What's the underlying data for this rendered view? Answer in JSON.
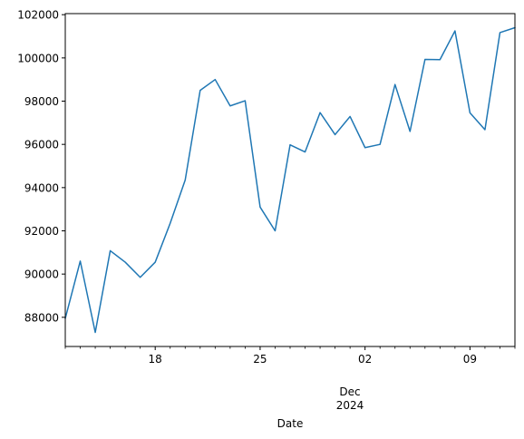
{
  "chart_data": {
    "type": "line",
    "xlabel": "Date",
    "x": [
      "2024-11-12",
      "2024-11-13",
      "2024-11-14",
      "2024-11-15",
      "2024-11-16",
      "2024-11-17",
      "2024-11-18",
      "2024-11-19",
      "2024-11-20",
      "2024-11-21",
      "2024-11-22",
      "2024-11-23",
      "2024-11-24",
      "2024-11-25",
      "2024-11-26",
      "2024-11-27",
      "2024-11-28",
      "2024-11-29",
      "2024-11-30",
      "2024-12-01",
      "2024-12-02",
      "2024-12-03",
      "2024-12-04",
      "2024-12-05",
      "2024-12-06",
      "2024-12-07",
      "2024-12-08",
      "2024-12-09",
      "2024-12-10",
      "2024-12-11",
      "2024-12-12"
    ],
    "series": [
      {
        "color": "#1f77b4",
        "values": [
          87950,
          90600,
          87300,
          91080,
          90550,
          89850,
          90550,
          92350,
          94350,
          98500,
          99000,
          97780,
          98020,
          93100,
          92000,
          95980,
          95650,
          97470,
          96450,
          97290,
          95850,
          96000,
          98770,
          96600,
          99930,
          99920,
          101250,
          97460,
          96680,
          101170,
          101400
        ]
      }
    ],
    "xlim": [
      "2024-11-12",
      "2024-12-12"
    ],
    "ylim": [
      86650,
      102050
    ],
    "y_ticks": [
      88000,
      90000,
      92000,
      94000,
      96000,
      98000,
      100000,
      102000
    ],
    "x_major_ticks": [
      {
        "date": "2024-11-18",
        "label": "18"
      },
      {
        "date": "2024-11-25",
        "label": "25"
      },
      {
        "date": "2024-12-02",
        "label": "02"
      },
      {
        "date": "2024-12-09",
        "label": "09"
      }
    ],
    "x_secondary_label": [
      "Dec",
      "2024"
    ],
    "grid": false,
    "legend": "none"
  }
}
